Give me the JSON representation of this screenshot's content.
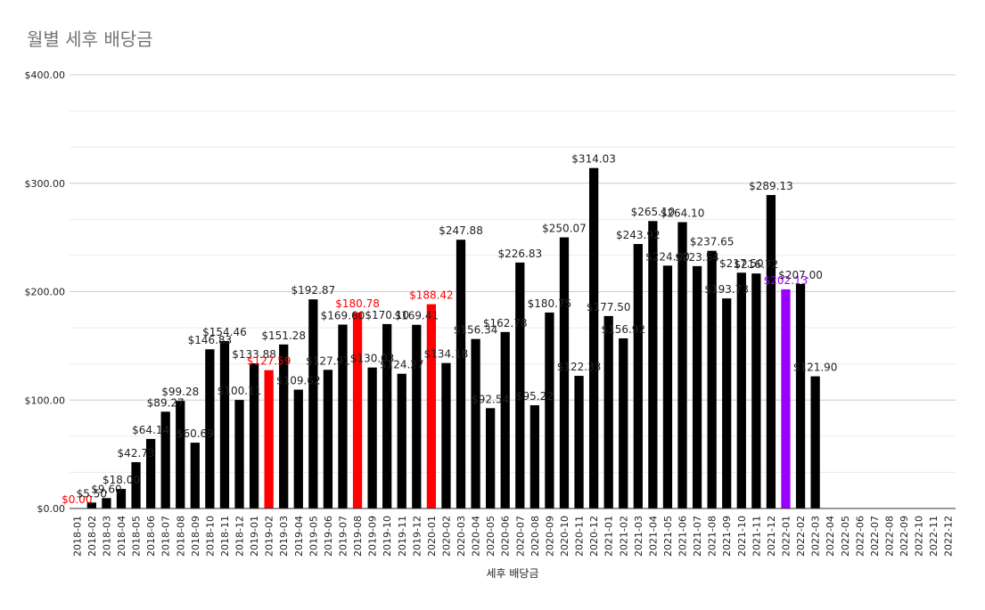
{
  "chart_data": {
    "type": "bar",
    "title": "월별 세후 배당금",
    "xlabel": "세후 배당금",
    "ylabel": "",
    "ylim": [
      0,
      400
    ],
    "yticks": [
      "$0.00",
      "$100.00",
      "$200.00",
      "$300.00",
      "$400.00"
    ],
    "grid": true,
    "legend": "none",
    "colors": {
      "default": "#000000",
      "highlight_red": "#ff0000",
      "highlight_purple": "#9900ff",
      "grid": "#d0d0d0"
    },
    "categories": [
      "2018-01",
      "2018-02",
      "2018-03",
      "2018-04",
      "2018-05",
      "2018-06",
      "2018-07",
      "2018-08",
      "2018-09",
      "2018-10",
      "2018-11",
      "2018-12",
      "2019-01",
      "2019-02",
      "2019-03",
      "2019-04",
      "2019-05",
      "2019-06",
      "2019-07",
      "2019-08",
      "2019-09",
      "2019-10",
      "2019-11",
      "2019-12",
      "2020-01",
      "2020-02",
      "2020-03",
      "2020-04",
      "2020-05",
      "2020-06",
      "2020-07",
      "2020-08",
      "2020-09",
      "2020-10",
      "2020-11",
      "2020-12",
      "2021-01",
      "2021-02",
      "2021-03",
      "2021-04",
      "2021-05",
      "2021-06",
      "2021-07",
      "2021-08",
      "2021-09",
      "2021-10",
      "2021-11",
      "2021-12",
      "2022-01",
      "2022-02",
      "2022-03",
      "2022-04",
      "2022-05",
      "2022-06",
      "2022-07",
      "2022-08",
      "2022-09",
      "2022-10",
      "2022-11",
      "2022-12"
    ],
    "values": [
      0.0,
      5.5,
      9.6,
      18.0,
      42.73,
      64.14,
      89.27,
      99.28,
      60.69,
      146.83,
      154.46,
      100.11,
      133.88,
      127.59,
      151.28,
      109.62,
      192.87,
      127.91,
      169.6,
      180.78,
      130.03,
      170.1,
      124.27,
      169.41,
      188.42,
      134.18,
      247.88,
      156.34,
      92.54,
      162.78,
      226.83,
      95.22,
      180.75,
      250.07,
      122.33,
      314.03,
      177.5,
      156.92,
      243.92,
      265.1,
      224.0,
      264.1,
      223.54,
      237.65,
      193.73,
      217.5,
      216.72,
      289.13,
      202.13,
      207.0,
      121.9,
      null,
      null,
      null,
      null,
      null,
      null,
      null,
      null,
      null
    ],
    "labels": [
      "$0.00",
      "$5.50",
      "$9.60",
      "$18.00",
      "$42.73",
      "$64.14",
      "$89.27",
      "$99.28",
      "$60.69",
      "$146.83",
      "$154.46",
      "$100.11",
      "$133.88",
      "$127.59",
      "$151.28",
      "$109.62",
      "$192.87",
      "$127.91",
      "$169.60",
      "$180.78",
      "$130.03",
      "$170.10",
      "$124.27",
      "$169.41",
      "$188.42",
      "$134.18",
      "$247.88",
      "$156.34",
      "$92.54",
      "$162.78",
      "$226.83",
      "$95.22",
      "$180.75",
      "$250.07",
      "$122.33",
      "$314.03",
      "$177.50",
      "$156.92",
      "$243.92",
      "$265.10",
      "$224.00",
      "$264.10",
      "$223.54",
      "$237.65",
      "$193.73",
      "$217.50",
      "$216.72",
      "$289.13",
      "$202.13",
      "$207.00",
      "$121.90",
      "",
      "",
      "",
      "",
      "",
      "",
      "",
      "",
      ""
    ],
    "highlight_red": [
      "2018-01",
      "2019-02",
      "2019-08",
      "2020-01"
    ],
    "highlight_purple": [
      "2022-01"
    ]
  }
}
